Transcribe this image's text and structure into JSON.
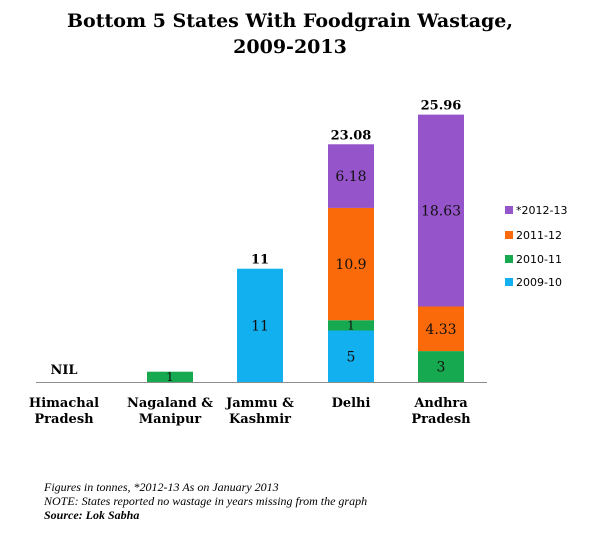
{
  "chart_data": {
    "type": "bar",
    "stacked": true,
    "title_line1": "Bottom 5 States With Foodgrain Wastage,",
    "title_line2": "2009-2013",
    "categories": [
      [
        "Himachal",
        "Pradesh"
      ],
      [
        "Nagaland &",
        "Manipur"
      ],
      [
        "Jammu &",
        "Kashmir"
      ],
      [
        "Delhi"
      ],
      [
        "Andhra",
        "Pradesh"
      ]
    ],
    "series": [
      {
        "name": "2009-10",
        "color": "#12b0ef",
        "values": [
          0,
          0,
          11,
          5,
          0
        ],
        "labels": [
          "",
          "",
          "11",
          "5",
          ""
        ]
      },
      {
        "name": "2010-11",
        "color": "#17a94f",
        "values": [
          0,
          1,
          0,
          1,
          3
        ],
        "labels": [
          "",
          "1",
          "",
          "1",
          "3"
        ]
      },
      {
        "name": "2011-12",
        "color": "#fa6a0a",
        "values": [
          0,
          0,
          0,
          10.9,
          4.33
        ],
        "labels": [
          "",
          "",
          "",
          "10.9",
          "4.33"
        ]
      },
      {
        "name": "*2012-13",
        "color": "#9554c9",
        "values": [
          0,
          0,
          0,
          6.18,
          18.63
        ],
        "labels": [
          "",
          "",
          "",
          "6.18",
          "18.63"
        ]
      }
    ],
    "totals": [
      "NIL",
      "",
      "11",
      "23.08",
      "25.96"
    ],
    "legend_order": [
      "*2012-13",
      "2011-12",
      "2010-11",
      "2009-10"
    ],
    "legend_position": "right",
    "grid": false,
    "ylim": [
      0,
      27
    ]
  },
  "footnotes": {
    "line1": "Figures in tonnes,  *2012-13 As on January 2013",
    "line2": "NOTE: States reported no wastage in years missing from the graph",
    "source": "Source: Lok Sabha"
  }
}
